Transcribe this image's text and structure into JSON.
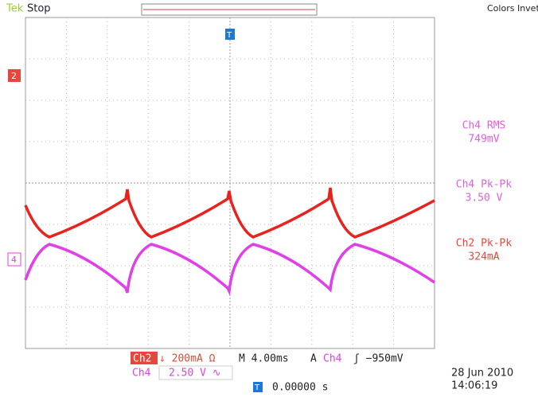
{
  "header": {
    "brand": "Tek",
    "status": "Stop",
    "color_mode": "Colors Invetered"
  },
  "markers": {
    "ch2": "2",
    "ch4": "4",
    "trigger_top": "T",
    "trigger_pos": "T"
  },
  "measurements": [
    {
      "label": "Ch4 RMS",
      "value": "749mV"
    },
    {
      "label": "Ch4 Pk-Pk",
      "value": "3.50 V"
    },
    {
      "label": "Ch2 Pk-Pk",
      "value": "324mA"
    }
  ],
  "footer": {
    "ch2_name": "Ch2",
    "ch2_scale": "↓ 200mA Ω",
    "timebase": "M 4.00ms",
    "trigger_mode": "A",
    "trigger_source": "Ch4",
    "trigger_level": "ʃ −950mV",
    "ch4_name": "Ch4",
    "ch4_scale": "2.50 V ∿",
    "trigger_position": "0.00000 s",
    "date": "28 Jun  2010",
    "time": "14:06:19"
  }
}
